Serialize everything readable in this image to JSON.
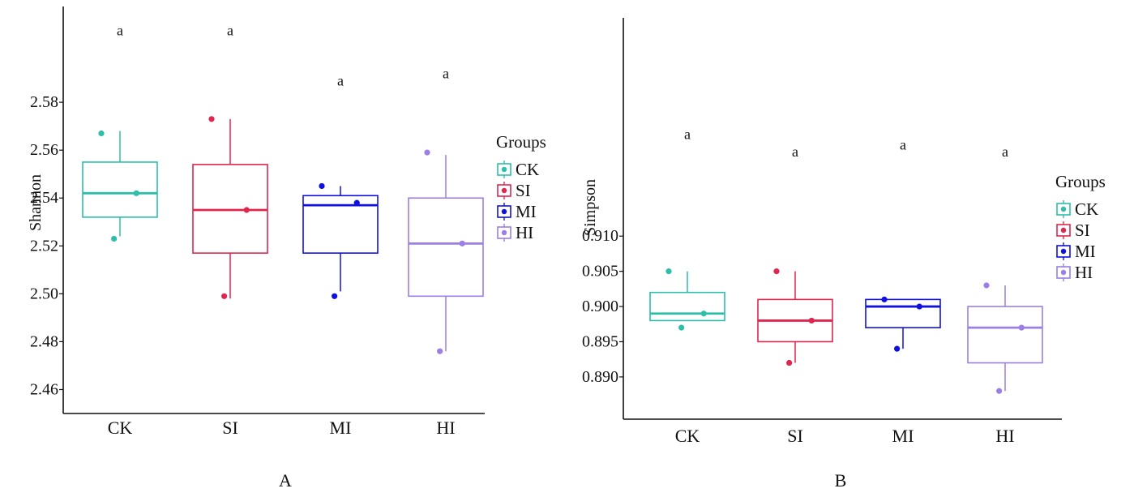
{
  "chart_data": [
    {
      "panel_label": "A",
      "type": "boxplot",
      "ylabel": "Shannon",
      "yticks": [
        "2.58",
        "2.56",
        "2.54",
        "2.52",
        "2.50",
        "2.48",
        "2.46"
      ],
      "ylim": [
        2.45,
        2.62
      ],
      "categories": [
        "CK",
        "SI",
        "MI",
        "HI"
      ],
      "legend": {
        "title": "Groups",
        "position": "right",
        "entries": [
          "CK",
          "SI",
          "MI",
          "HI"
        ]
      },
      "boxes": [
        {
          "group": "CK",
          "min": 2.524,
          "q1": 2.532,
          "median": 2.542,
          "q3": 2.555,
          "max": 2.568,
          "points": [
            2.567,
            2.542,
            2.523
          ],
          "letter": "a",
          "letter_y": 2.61
        },
        {
          "group": "SI",
          "min": 2.498,
          "q1": 2.517,
          "median": 2.535,
          "q3": 2.554,
          "max": 2.573,
          "points": [
            2.573,
            2.535,
            2.499
          ],
          "letter": "a",
          "letter_y": 2.61
        },
        {
          "group": "MI",
          "min": 2.501,
          "q1": 2.517,
          "median": 2.537,
          "q3": 2.541,
          "max": 2.545,
          "points": [
            2.545,
            2.538,
            2.499
          ],
          "letter": "a",
          "letter_y": 2.589
        },
        {
          "group": "HI",
          "min": 2.476,
          "q1": 2.499,
          "median": 2.521,
          "q3": 2.54,
          "max": 2.558,
          "points": [
            2.559,
            2.521,
            2.476
          ],
          "letter": "a",
          "letter_y": 2.592
        }
      ]
    },
    {
      "panel_label": "B",
      "type": "boxplot",
      "ylabel": "Simpson",
      "yticks": [
        "0.910",
        "0.905",
        "0.900",
        "0.895",
        "0.890"
      ],
      "ylim": [
        0.884,
        0.941
      ],
      "categories": [
        "CK",
        "SI",
        "MI",
        "HI"
      ],
      "legend": {
        "title": "Groups",
        "position": "right",
        "entries": [
          "CK",
          "SI",
          "MI",
          "HI"
        ]
      },
      "boxes": [
        {
          "group": "CK",
          "min": 0.898,
          "q1": 0.898,
          "median": 0.899,
          "q3": 0.902,
          "max": 0.905,
          "points": [
            0.905,
            0.899,
            0.897
          ],
          "letter": "a",
          "letter_y": 0.9245
        },
        {
          "group": "SI",
          "min": 0.892,
          "q1": 0.895,
          "median": 0.898,
          "q3": 0.901,
          "max": 0.905,
          "points": [
            0.905,
            0.898,
            0.892
          ],
          "letter": "a",
          "letter_y": 0.922
        },
        {
          "group": "MI",
          "min": 0.894,
          "q1": 0.897,
          "median": 0.9,
          "q3": 0.901,
          "max": 0.901,
          "points": [
            0.901,
            0.9,
            0.894
          ],
          "letter": "a",
          "letter_y": 0.923
        },
        {
          "group": "HI",
          "min": 0.888,
          "q1": 0.892,
          "median": 0.897,
          "q3": 0.9,
          "max": 0.903,
          "points": [
            0.903,
            0.897,
            0.888
          ],
          "letter": "a",
          "letter_y": 0.922
        }
      ]
    }
  ],
  "colors": {
    "CK": "#2dbfa8",
    "SI": "#e0264e",
    "MI": "#1010e0",
    "HI": "#9b7fe6",
    "axis": "#111111"
  }
}
